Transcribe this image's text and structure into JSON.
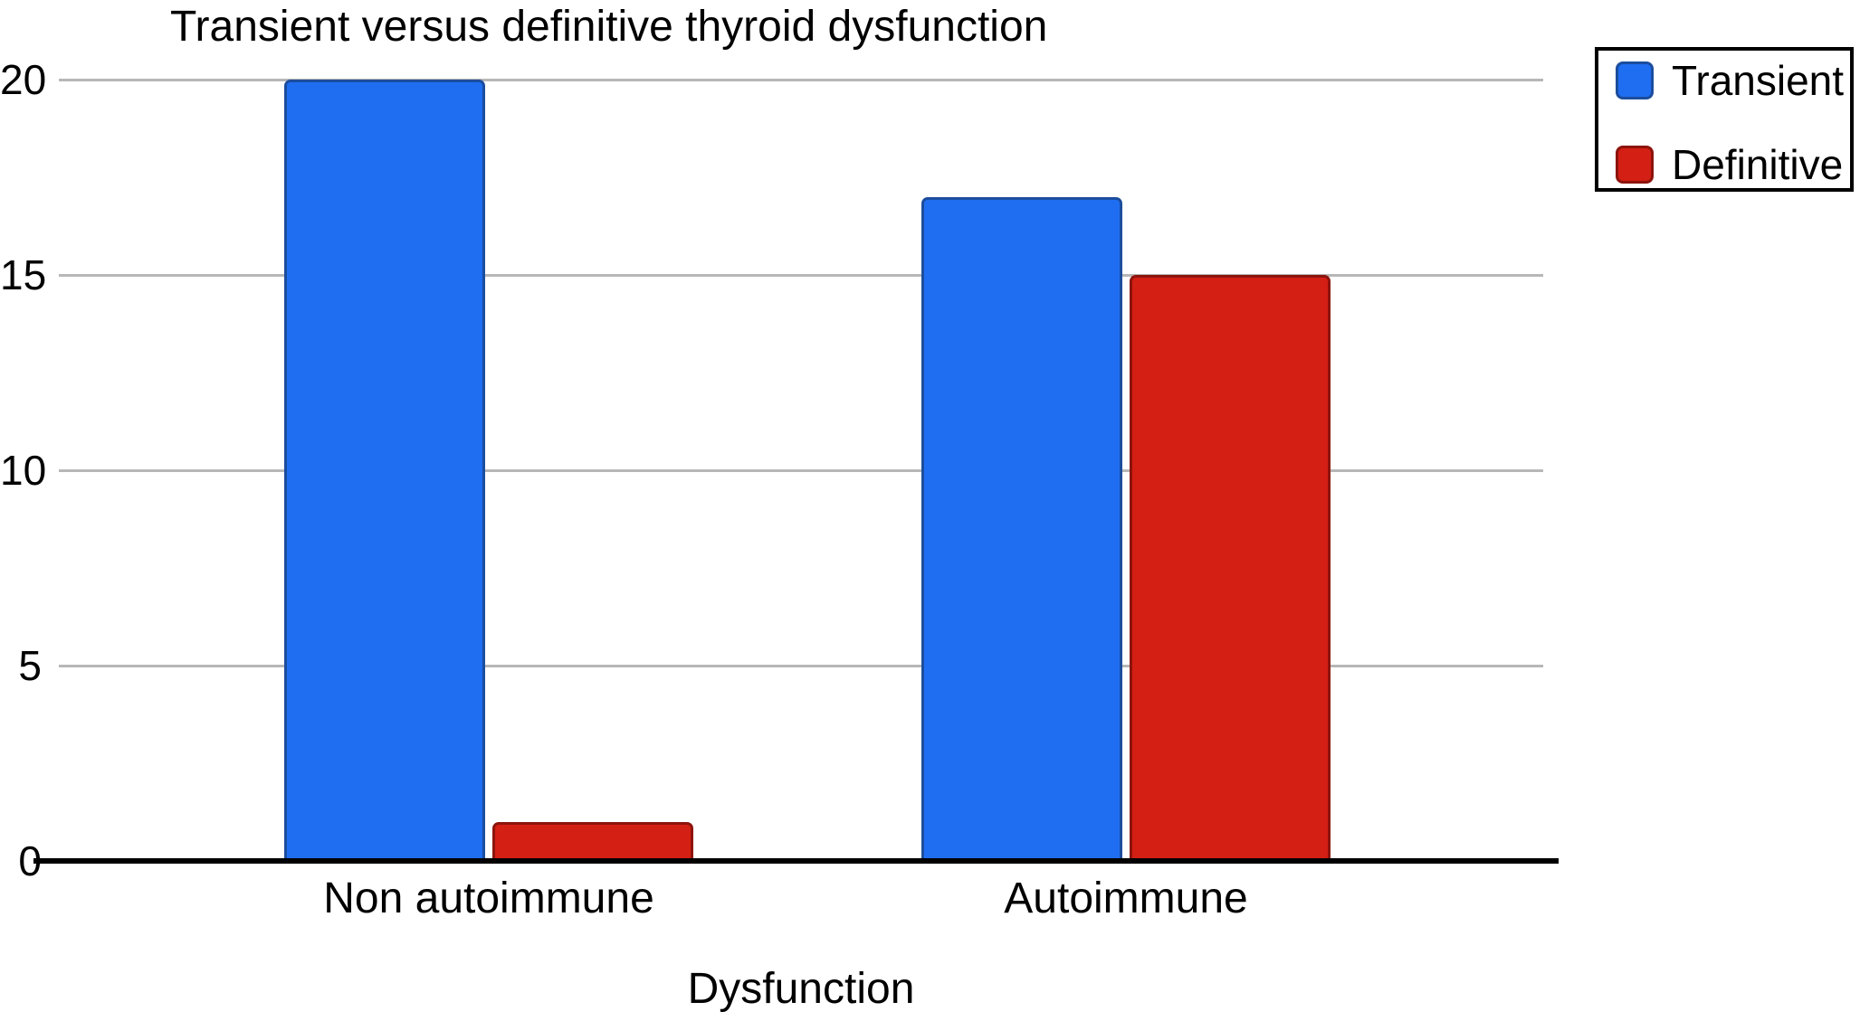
{
  "figure": {
    "background": "#ffffff",
    "text_color": "#000000"
  },
  "chart_data": {
    "type": "bar",
    "title": "Transient versus definitive thyroid dysfunction",
    "xlabel": "Dysfunction",
    "ylabel": "",
    "categories": [
      "Non autoimmune",
      "Autoimmune"
    ],
    "series": [
      {
        "name": "Transient",
        "color": "#1f6ef2",
        "border_color": "#1c4d9e",
        "values": [
          20,
          17
        ]
      },
      {
        "name": "Definitive",
        "color": "#d41f14",
        "border_color": "#8d140c",
        "values": [
          1,
          15
        ]
      }
    ],
    "ylim": [
      0,
      20
    ],
    "yticks": [
      0,
      5,
      10,
      15,
      20
    ],
    "grid": true,
    "gridline_color": "#b7b7b7",
    "axis_color": "#000000",
    "legend_position": "top-right",
    "legend_entries": [
      "Transient",
      "Definitive"
    ]
  }
}
